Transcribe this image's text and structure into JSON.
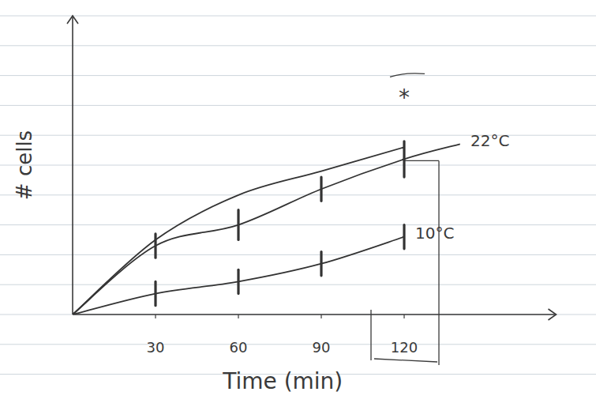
{
  "chart_data": {
    "type": "line",
    "x_label": "Time (min)",
    "y_label": "# cells",
    "x": [
      0,
      30,
      60,
      90,
      120,
      140
    ],
    "xlim": [
      0,
      175
    ],
    "xticks": [
      30,
      60,
      90,
      120
    ],
    "ylim": [
      0,
      10
    ],
    "yticks": [],
    "tick_labels": "x",
    "grid": false,
    "series": [
      {
        "name": "22°C",
        "color": "#333333",
        "values": [
          0,
          2.3,
          3.0,
          4.2,
          5.2,
          5.7
        ],
        "errors": [
          null,
          0.4,
          0.5,
          0.4,
          0.6,
          null
        ]
      },
      {
        "name": "10°C",
        "color": "#333333",
        "values": [
          0,
          0.7,
          1.1,
          1.7,
          2.6,
          null
        ],
        "errors": [
          null,
          0.4,
          0.4,
          0.4,
          0.4,
          null
        ]
      },
      {
        "color": "#333333",
        "values": [
          0,
          2.5,
          4.0,
          4.8,
          5.6,
          null
        ]
      }
    ],
    "annotations": [
      {
        "text": "*",
        "x": 120,
        "y": 7.0
      }
    ]
  }
}
